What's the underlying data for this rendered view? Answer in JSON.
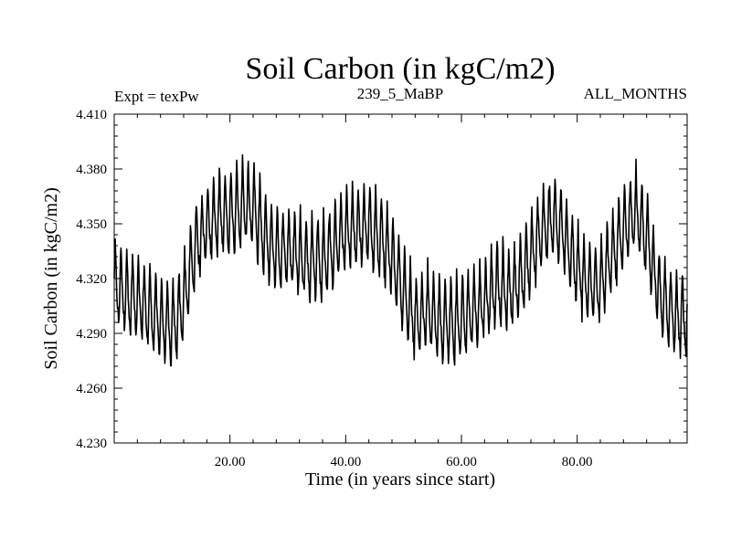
{
  "chart_data": {
    "type": "line",
    "title": "Soil Carbon (in kgC/m2)",
    "subtitle_left": "Expt = texPw",
    "subtitle_center": "239_5_MaBP",
    "subtitle_right": "ALL_MONTHS",
    "xlabel": "Time (in years since start)",
    "ylabel": "Soil Carbon (in kgC/m2)",
    "xlim": [
      0,
      99
    ],
    "ylim": [
      4.23,
      4.41
    ],
    "xticks": [
      20,
      40,
      60,
      80
    ],
    "xtick_labels": [
      "20.00",
      "40.00",
      "60.00",
      "80.00"
    ],
    "yticks": [
      4.23,
      4.26,
      4.29,
      4.32,
      4.35,
      4.38,
      4.41
    ],
    "ytick_labels": [
      "4.230",
      "4.260",
      "4.290",
      "4.320",
      "4.350",
      "4.380",
      "4.410"
    ],
    "grid": false,
    "series": [
      {
        "name": "Soil Carbon",
        "sampling": "monthly",
        "x_start": 0,
        "x_step": 0.08333,
        "annual_mean_x": [
          0,
          2,
          4,
          6,
          8,
          10,
          12,
          14,
          16,
          18,
          20,
          22,
          24,
          26,
          28,
          30,
          32,
          34,
          36,
          38,
          40,
          42,
          44,
          46,
          48,
          50,
          52,
          54,
          56,
          58,
          60,
          62,
          64,
          66,
          68,
          70,
          72,
          74,
          76,
          78,
          80,
          82,
          84,
          86,
          88,
          90,
          92,
          94,
          96,
          98,
          99
        ],
        "annual_mean": [
          4.318,
          4.315,
          4.31,
          4.305,
          4.3,
          4.295,
          4.31,
          4.34,
          4.352,
          4.356,
          4.358,
          4.362,
          4.362,
          4.345,
          4.338,
          4.338,
          4.335,
          4.332,
          4.333,
          4.34,
          4.348,
          4.35,
          4.35,
          4.345,
          4.335,
          4.315,
          4.3,
          4.305,
          4.3,
          4.298,
          4.3,
          4.305,
          4.31,
          4.318,
          4.315,
          4.32,
          4.335,
          4.35,
          4.355,
          4.345,
          4.328,
          4.318,
          4.32,
          4.335,
          4.348,
          4.36,
          4.345,
          4.318,
          4.305,
          4.3,
          4.302
        ],
        "seasonal_amplitude": 0.021,
        "color": "#000000"
      }
    ]
  }
}
